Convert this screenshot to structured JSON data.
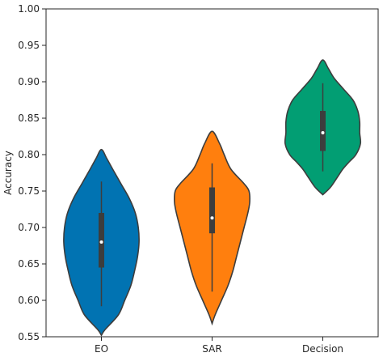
{
  "chart_data": {
    "type": "violin",
    "title": "",
    "xlabel": "",
    "ylabel": "Accuracy",
    "ylim": [
      0.55,
      1.0
    ],
    "yticks": [
      "0.55",
      "0.60",
      "0.65",
      "0.70",
      "0.75",
      "0.80",
      "0.85",
      "0.90",
      "0.95",
      "1.00"
    ],
    "grid": false,
    "legend": "none",
    "categories": [
      "EO",
      "SAR",
      "Decision"
    ],
    "series": [
      {
        "category": "EO",
        "color": "#0173b2",
        "range": [
          0.552,
          0.807
        ],
        "whisker": [
          0.592,
          0.763
        ],
        "q1": 0.645,
        "median": 0.68,
        "q3": 0.72,
        "density": [
          [
            0.552,
            0.0
          ],
          [
            0.56,
            0.1
          ],
          [
            0.58,
            0.45
          ],
          [
            0.6,
            0.62
          ],
          [
            0.62,
            0.78
          ],
          [
            0.64,
            0.88
          ],
          [
            0.66,
            0.96
          ],
          [
            0.68,
            1.0
          ],
          [
            0.7,
            0.98
          ],
          [
            0.72,
            0.9
          ],
          [
            0.74,
            0.74
          ],
          [
            0.76,
            0.52
          ],
          [
            0.78,
            0.3
          ],
          [
            0.795,
            0.14
          ],
          [
            0.807,
            0.0
          ]
        ]
      },
      {
        "category": "SAR",
        "color": "#ff7f0e",
        "range": [
          0.568,
          0.832
        ],
        "whisker": [
          0.612,
          0.788
        ],
        "q1": 0.692,
        "median": 0.713,
        "q3": 0.755,
        "density": [
          [
            0.568,
            0.0
          ],
          [
            0.58,
            0.08
          ],
          [
            0.6,
            0.25
          ],
          [
            0.62,
            0.42
          ],
          [
            0.64,
            0.55
          ],
          [
            0.66,
            0.65
          ],
          [
            0.68,
            0.75
          ],
          [
            0.7,
            0.85
          ],
          [
            0.72,
            0.95
          ],
          [
            0.735,
            1.0
          ],
          [
            0.75,
            0.98
          ],
          [
            0.76,
            0.85
          ],
          [
            0.78,
            0.5
          ],
          [
            0.8,
            0.32
          ],
          [
            0.815,
            0.2
          ],
          [
            0.832,
            0.0
          ]
        ]
      },
      {
        "category": "Decision",
        "color": "#029e73",
        "range": [
          0.745,
          0.93
        ],
        "whisker": [
          0.777,
          0.898
        ],
        "q1": 0.805,
        "median": 0.83,
        "q3": 0.86,
        "density": [
          [
            0.745,
            0.0
          ],
          [
            0.755,
            0.2
          ],
          [
            0.77,
            0.4
          ],
          [
            0.78,
            0.53
          ],
          [
            0.79,
            0.7
          ],
          [
            0.8,
            0.88
          ],
          [
            0.815,
            1.0
          ],
          [
            0.83,
            0.98
          ],
          [
            0.845,
            0.98
          ],
          [
            0.86,
            0.93
          ],
          [
            0.875,
            0.8
          ],
          [
            0.89,
            0.55
          ],
          [
            0.905,
            0.3
          ],
          [
            0.918,
            0.15
          ],
          [
            0.93,
            0.0
          ]
        ]
      }
    ]
  }
}
